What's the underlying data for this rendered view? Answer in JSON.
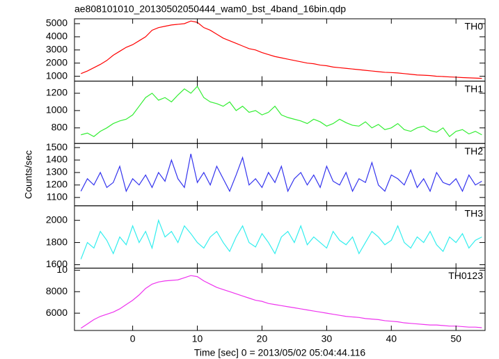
{
  "chart_data": {
    "type": "line",
    "title": "ae808101010_20130502050444_wam0_bst_4band_16bin.qdp",
    "x_label": "Time [sec] 0 = 2013/05/02 05:04:44.116",
    "y_label": "Counts/sec",
    "xlim": [
      -9,
      54.5
    ],
    "xticks": [
      0,
      10,
      20,
      30,
      40,
      50
    ],
    "x": [
      -8,
      -7,
      -6,
      -5,
      -4,
      -3,
      -2,
      -1,
      0,
      1,
      2,
      3,
      4,
      5,
      6,
      7,
      8,
      9,
      10,
      11,
      12,
      13,
      14,
      15,
      16,
      17,
      18,
      19,
      20,
      21,
      22,
      23,
      24,
      25,
      26,
      27,
      28,
      29,
      30,
      31,
      32,
      33,
      34,
      35,
      36,
      37,
      38,
      39,
      40,
      41,
      42,
      43,
      44,
      45,
      46,
      47,
      48,
      49,
      50,
      51,
      52,
      53,
      54
    ],
    "series": [
      {
        "name": "TH0",
        "color": "#ff0000",
        "ylim": [
          630,
          5370
        ],
        "yticks": [
          1000,
          2000,
          3000,
          4000,
          5000
        ],
        "values": [
          1200,
          1400,
          1650,
          1900,
          2200,
          2600,
          2900,
          3200,
          3400,
          3700,
          4000,
          4500,
          4700,
          4800,
          4900,
          4950,
          5000,
          5200,
          5100,
          4700,
          4500,
          4200,
          3900,
          3700,
          3500,
          3300,
          3100,
          3000,
          2800,
          2650,
          2500,
          2400,
          2300,
          2200,
          2100,
          2000,
          1950,
          1850,
          1800,
          1700,
          1650,
          1600,
          1550,
          1500,
          1450,
          1400,
          1350,
          1300,
          1280,
          1250,
          1200,
          1150,
          1100,
          1080,
          1050,
          1000,
          980,
          950,
          930,
          900,
          880,
          860,
          840
        ]
      },
      {
        "name": "TH1",
        "color": "#33ee33",
        "ylim": [
          620,
          1340
        ],
        "yticks": [
          800,
          1000,
          1200
        ],
        "values": [
          720,
          740,
          700,
          760,
          800,
          850,
          880,
          900,
          950,
          1050,
          1150,
          1200,
          1120,
          1150,
          1100,
          1180,
          1250,
          1200,
          1280,
          1150,
          1100,
          1080,
          1050,
          1100,
          1000,
          1050,
          980,
          1000,
          950,
          980,
          1050,
          950,
          920,
          900,
          880,
          850,
          900,
          870,
          820,
          850,
          900,
          860,
          830,
          820,
          870,
          800,
          840,
          780,
          800,
          850,
          780,
          760,
          800,
          820,
          770,
          750,
          800,
          700,
          760,
          780,
          730,
          760,
          720
        ]
      },
      {
        "name": "TH2",
        "color": "#3333ee",
        "ylim": [
          1033,
          1533
        ],
        "yticks": [
          1100,
          1200,
          1300,
          1400,
          1500
        ],
        "values": [
          1150,
          1250,
          1200,
          1300,
          1180,
          1220,
          1350,
          1150,
          1250,
          1200,
          1280,
          1180,
          1300,
          1230,
          1400,
          1250,
          1180,
          1450,
          1220,
          1300,
          1200,
          1350,
          1250,
          1150,
          1280,
          1420,
          1200,
          1250,
          1180,
          1300,
          1220,
          1350,
          1150,
          1250,
          1300,
          1200,
          1280,
          1180,
          1350,
          1230,
          1200,
          1300,
          1150,
          1250,
          1220,
          1380,
          1200,
          1150,
          1280,
          1250,
          1200,
          1320,
          1180,
          1250,
          1150,
          1300,
          1220,
          1200,
          1250,
          1150,
          1280,
          1200,
          1230
        ]
      },
      {
        "name": "TH3",
        "color": "#33eeee",
        "ylim": [
          1569,
          2131
        ],
        "yticks": [
          1600,
          1800,
          2000
        ],
        "values": [
          1650,
          1800,
          1750,
          1900,
          1820,
          1700,
          1850,
          1780,
          1950,
          1800,
          1900,
          1750,
          2000,
          1850,
          1900,
          1800,
          1950,
          1880,
          1800,
          1750,
          1850,
          1900,
          1800,
          1720,
          1850,
          1950,
          1800,
          1760,
          1880,
          1800,
          1700,
          1850,
          1900,
          1800,
          1950,
          1780,
          1850,
          1800,
          1750,
          1900,
          1820,
          1780,
          1850,
          1700,
          1800,
          1900,
          1850,
          1780,
          1820,
          1950,
          1800,
          1750,
          1850,
          1800,
          1900,
          1780,
          1720,
          1850,
          1800,
          1880,
          1750,
          1820,
          1850
        ]
      },
      {
        "name": "TH0123",
        "color": "#ee33ee",
        "ylim": [
          4390,
          10190
        ],
        "yticks": [
          6000,
          8000,
          {
            "value": 10000,
            "label": "10"
          }
        ],
        "values": [
          4600,
          5000,
          5400,
          5700,
          5900,
          6100,
          6400,
          6800,
          7200,
          7700,
          8300,
          8700,
          8900,
          9000,
          9050,
          9100,
          9300,
          9500,
          9400,
          9000,
          8700,
          8400,
          8200,
          8000,
          7800,
          7600,
          7400,
          7200,
          7100,
          6900,
          6800,
          6700,
          6600,
          6500,
          6400,
          6300,
          6200,
          6100,
          6000,
          5900,
          5800,
          5700,
          5650,
          5600,
          5500,
          5450,
          5400,
          5300,
          5250,
          5200,
          5100,
          5050,
          5000,
          4950,
          4900,
          4900,
          4850,
          4800,
          4800,
          4750,
          4700,
          4700,
          4650
        ]
      }
    ]
  }
}
